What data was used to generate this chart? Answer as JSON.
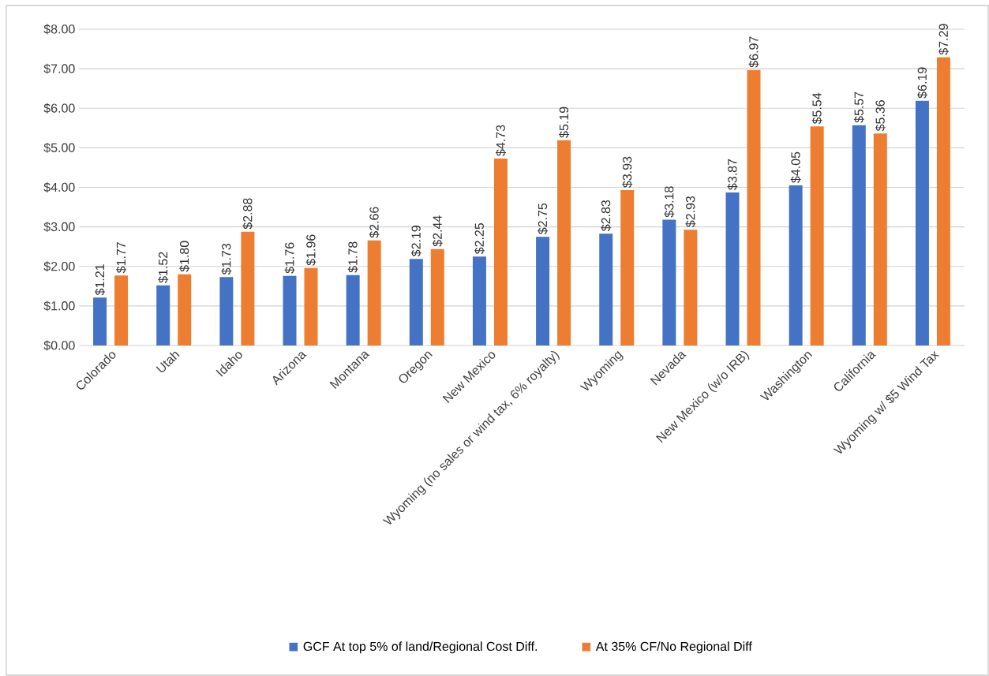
{
  "chart_data": {
    "type": "bar",
    "categories": [
      "Colorado",
      "Utah",
      "Idaho",
      "Arizona",
      "Montana",
      "Oregon",
      "New Mexico",
      "Wyoming (no sales or wind tax, 6% royalty)",
      "Wyoming",
      "Nevada",
      "New Mexico (w/o IRB)",
      "Washington",
      "California",
      "Wyoming w/ $5 Wind Tax"
    ],
    "series": [
      {
        "name": "GCF At top 5% of land/Regional Cost Diff.",
        "color": "#4472c4",
        "values": [
          1.21,
          1.52,
          1.73,
          1.76,
          1.78,
          2.19,
          2.25,
          2.75,
          2.83,
          3.18,
          3.87,
          4.05,
          5.57,
          6.19
        ],
        "value_labels": [
          "$1.21",
          "$1.52",
          "$1.73",
          "$1.76",
          "$1.78",
          "$2.19",
          "$2.25",
          "$2.75",
          "$2.83",
          "$3.18",
          "$3.87",
          "$4.05",
          "$5.57",
          "$6.19"
        ]
      },
      {
        "name": "At 35% CF/No Regional Diff",
        "color": "#ed7d31",
        "values": [
          1.77,
          1.8,
          2.88,
          1.96,
          2.66,
          2.44,
          4.73,
          5.19,
          3.93,
          2.93,
          6.97,
          5.54,
          5.36,
          7.29
        ],
        "value_labels": [
          "$1.77",
          "$1.80",
          "$2.88",
          "$1.96",
          "$2.66",
          "$2.44",
          "$4.73",
          "$5.19",
          "$3.93",
          "$2.93",
          "$6.97",
          "$5.54",
          "$5.36",
          "$7.29"
        ]
      }
    ],
    "ylim": [
      0,
      8
    ],
    "yticks": [
      {
        "value": 0,
        "label": "$0.00"
      },
      {
        "value": 1,
        "label": "$1.00"
      },
      {
        "value": 2,
        "label": "$2.00"
      },
      {
        "value": 3,
        "label": "$3.00"
      },
      {
        "value": 4,
        "label": "$4.00"
      },
      {
        "value": 5,
        "label": "$5.00"
      },
      {
        "value": 6,
        "label": "$6.00"
      },
      {
        "value": 7,
        "label": "$7.00"
      },
      {
        "value": 8,
        "label": "$8.00"
      }
    ],
    "grid": "y",
    "legend": "bottom"
  }
}
